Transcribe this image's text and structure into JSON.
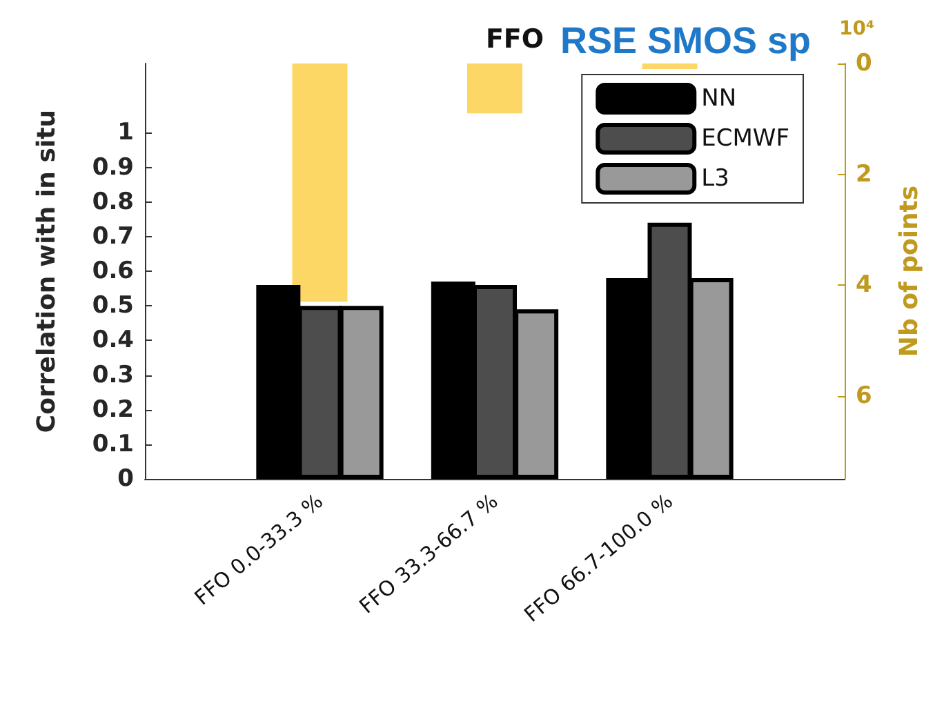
{
  "chart_data": {
    "type": "bar",
    "title": "FFO",
    "ylabel": "Correlation with in situ",
    "y2label": "Nb of points",
    "annotations": [
      "RSE SMOS sp",
      "10⁴"
    ],
    "categories": [
      null,
      "FFO 0.0-33.3 %",
      "FFO 33.3-66.7 %",
      "FFO 66.7-100.0 %",
      null
    ],
    "series": [
      {
        "name": "NN",
        "color": "#000000",
        "values": [
          null,
          0.56,
          0.57,
          0.58,
          null
        ]
      },
      {
        "name": "ECMWF",
        "color": "#4d4d4d",
        "values": [
          null,
          0.5,
          0.56,
          0.74,
          null
        ]
      },
      {
        "name": "L3",
        "color": "#999999",
        "values": [
          null,
          0.5,
          0.49,
          0.58,
          null
        ]
      },
      {
        "color": "#fdd04a",
        "axis": "y2",
        "values": [
          null,
          4.3,
          0.9,
          0.1,
          null
        ]
      }
    ],
    "ylim": [
      0,
      1.2
    ],
    "yticks": [
      0,
      0.1,
      0.2,
      0.3,
      0.4,
      0.5,
      0.6,
      0.7,
      0.8,
      0.9,
      1
    ],
    "y2lim": [
      7.5,
      0
    ],
    "y2ticks": [
      0,
      2,
      4,
      6
    ],
    "grid": false,
    "legend": "top right"
  }
}
